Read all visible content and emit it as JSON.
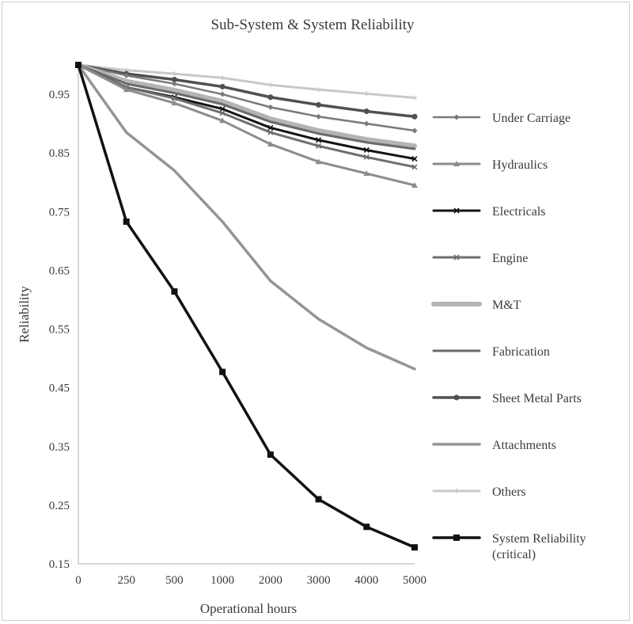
{
  "chart_data": {
    "type": "line",
    "title": "Sub-System & System Reliability",
    "xlabel": "Operational hours",
    "ylabel": "Reliability",
    "categories": [
      "0",
      "250",
      "500",
      "1000",
      "2000",
      "3000",
      "4000",
      "5000"
    ],
    "ylim": [
      0.15,
      1.0
    ],
    "yticks": [
      0.15,
      0.25,
      0.35,
      0.45,
      0.55,
      0.65,
      0.75,
      0.85,
      0.95
    ],
    "grid": false,
    "legend_position": "right",
    "series": [
      {
        "name": "Under Carriage",
        "color": "#7a7a7a",
        "width": 2.5,
        "marker": "diamond",
        "values": [
          1.0,
          0.982,
          0.968,
          0.95,
          0.928,
          0.912,
          0.9,
          0.888
        ]
      },
      {
        "name": "Hydraulics",
        "color": "#8c8c8c",
        "width": 3,
        "marker": "triangle",
        "values": [
          1.0,
          0.958,
          0.935,
          0.905,
          0.865,
          0.835,
          0.815,
          0.795
        ]
      },
      {
        "name": "Electricals",
        "color": "#141414",
        "width": 3,
        "marker": "x",
        "values": [
          1.0,
          0.962,
          0.945,
          0.925,
          0.893,
          0.872,
          0.855,
          0.84
        ]
      },
      {
        "name": "Engine",
        "color": "#6e6e6e",
        "width": 3,
        "marker": "x",
        "values": [
          1.0,
          0.962,
          0.943,
          0.918,
          0.885,
          0.862,
          0.843,
          0.826
        ]
      },
      {
        "name": "M&T",
        "color": "#b4b4b4",
        "width": 6,
        "marker": "none",
        "values": [
          1.0,
          0.972,
          0.957,
          0.938,
          0.908,
          0.888,
          0.873,
          0.862
        ]
      },
      {
        "name": "Fabrication",
        "color": "#6a6a6a",
        "width": 3,
        "marker": "none",
        "values": [
          1.0,
          0.968,
          0.952,
          0.933,
          0.903,
          0.883,
          0.868,
          0.857
        ]
      },
      {
        "name": "Sheet Metal Parts",
        "color": "#505050",
        "width": 3.5,
        "marker": "circle",
        "values": [
          1.0,
          0.985,
          0.975,
          0.963,
          0.945,
          0.932,
          0.921,
          0.912
        ]
      },
      {
        "name": "Attachments",
        "color": "#959595",
        "width": 3.5,
        "marker": "none",
        "values": [
          1.0,
          0.885,
          0.82,
          0.733,
          0.632,
          0.567,
          0.518,
          0.482
        ]
      },
      {
        "name": "Others",
        "color": "#c8c8c8",
        "width": 3,
        "marker": "plus",
        "values": [
          1.0,
          0.991,
          0.985,
          0.978,
          0.966,
          0.958,
          0.951,
          0.944
        ]
      },
      {
        "name": "System Reliability (critical)",
        "color": "#111111",
        "width": 3.5,
        "marker": "square",
        "values": [
          1.0,
          0.733,
          0.614,
          0.477,
          0.336,
          0.26,
          0.213,
          0.178
        ]
      }
    ]
  }
}
